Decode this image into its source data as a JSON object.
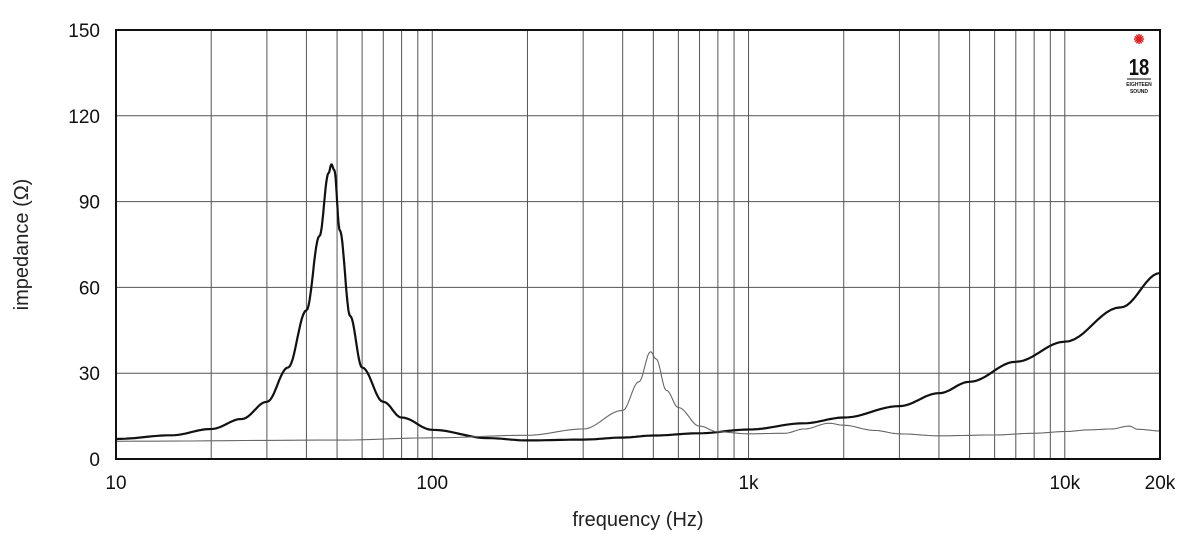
{
  "chart_data": {
    "type": "line",
    "xlabel": "frequency (Hz)",
    "ylabel": "impedance (Ω)",
    "x_scale": "log",
    "xlim": [
      10,
      20000
    ],
    "ylim": [
      0,
      150
    ],
    "grid": true,
    "x_ticks": [
      {
        "value": 10,
        "label": "10"
      },
      {
        "value": 100,
        "label": "100"
      },
      {
        "value": 1000,
        "label": "1k"
      },
      {
        "value": 10000,
        "label": "10k"
      },
      {
        "value": 20000,
        "label": "20k"
      }
    ],
    "y_ticks": [
      {
        "value": 0,
        "label": "0"
      },
      {
        "value": 30,
        "label": "30"
      },
      {
        "value": 60,
        "label": "60"
      },
      {
        "value": 90,
        "label": "90"
      },
      {
        "value": 120,
        "label": "120"
      },
      {
        "value": 150,
        "label": "150"
      }
    ],
    "series": [
      {
        "style": "thick",
        "color": "#111111",
        "points": [
          [
            10,
            7.0
          ],
          [
            15,
            8.3
          ],
          [
            20,
            10.5
          ],
          [
            25,
            14
          ],
          [
            30,
            20
          ],
          [
            35,
            32
          ],
          [
            40,
            52
          ],
          [
            44,
            78
          ],
          [
            47,
            100
          ],
          [
            48,
            103
          ],
          [
            49,
            101
          ],
          [
            51,
            80
          ],
          [
            55,
            50
          ],
          [
            60,
            32
          ],
          [
            70,
            20
          ],
          [
            80,
            14.5
          ],
          [
            100,
            10.2
          ],
          [
            150,
            7.3
          ],
          [
            200,
            6.5
          ],
          [
            300,
            6.8
          ],
          [
            400,
            7.5
          ],
          [
            500,
            8.2
          ],
          [
            700,
            9.0
          ],
          [
            1000,
            10.3
          ],
          [
            1500,
            12.5
          ],
          [
            2000,
            14.5
          ],
          [
            3000,
            18.5
          ],
          [
            4000,
            23
          ],
          [
            5000,
            27
          ],
          [
            7000,
            34
          ],
          [
            10000,
            41
          ],
          [
            15000,
            53
          ],
          [
            20000,
            65
          ]
        ]
      },
      {
        "style": "thin",
        "color": "#666666",
        "points": [
          [
            10,
            6.2
          ],
          [
            50,
            6.6
          ],
          [
            100,
            7.4
          ],
          [
            200,
            8.3
          ],
          [
            300,
            10.5
          ],
          [
            400,
            17
          ],
          [
            450,
            27
          ],
          [
            490,
            37.5
          ],
          [
            510,
            35
          ],
          [
            550,
            24
          ],
          [
            600,
            18
          ],
          [
            700,
            11.5
          ],
          [
            800,
            9.5
          ],
          [
            1000,
            8.8
          ],
          [
            1300,
            9.0
          ],
          [
            1500,
            10.5
          ],
          [
            1800,
            12.5
          ],
          [
            2000,
            11.8
          ],
          [
            2500,
            10.0
          ],
          [
            3000,
            8.8
          ],
          [
            4000,
            8.1
          ],
          [
            6000,
            8.4
          ],
          [
            8000,
            9.0
          ],
          [
            10000,
            9.6
          ],
          [
            12000,
            10.2
          ],
          [
            14000,
            10.5
          ],
          [
            16000,
            11.5
          ],
          [
            17000,
            10.4
          ],
          [
            20000,
            9.8
          ]
        ]
      }
    ]
  },
  "logo": {
    "number": "18",
    "line1": "EIGHTEEN",
    "line2": "SOUND",
    "star_color": "#e02020"
  }
}
